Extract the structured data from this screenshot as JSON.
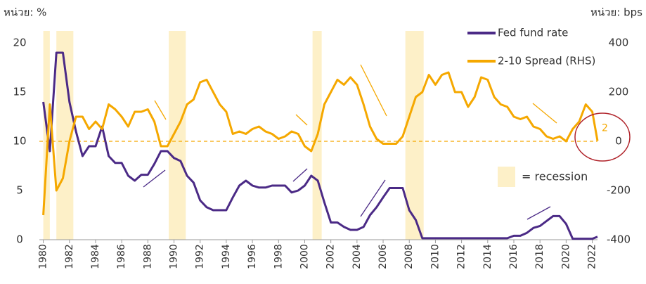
{
  "chart_data": {
    "type": "line",
    "y_unit_label": "หน่วย: %",
    "y2_unit_label": "หน่วย: bps",
    "x": [
      1980.0,
      1980.5,
      1981.0,
      1981.5,
      1982.0,
      1982.5,
      1983.0,
      1983.5,
      1984.0,
      1984.5,
      1985.0,
      1985.5,
      1986.0,
      1986.5,
      1987.0,
      1987.5,
      1988.0,
      1988.5,
      1989.0,
      1989.5,
      1990.0,
      1990.5,
      1991.0,
      1991.5,
      1992.0,
      1992.5,
      1993.0,
      1993.5,
      1994.0,
      1994.5,
      1995.0,
      1995.5,
      1996.0,
      1996.5,
      1997.0,
      1997.5,
      1998.0,
      1998.5,
      1999.0,
      1999.5,
      2000.0,
      2000.5,
      2001.0,
      2001.5,
      2002.0,
      2002.5,
      2003.0,
      2003.5,
      2004.0,
      2004.5,
      2005.0,
      2005.5,
      2006.0,
      2006.5,
      2007.0,
      2007.5,
      2008.0,
      2008.5,
      2009.0,
      2009.5,
      2010.0,
      2010.5,
      2011.0,
      2011.5,
      2012.0,
      2012.5,
      2013.0,
      2013.5,
      2014.0,
      2014.5,
      2015.0,
      2015.5,
      2016.0,
      2016.5,
      2017.0,
      2017.5,
      2018.0,
      2018.5,
      2019.0,
      2019.5,
      2020.0,
      2020.5,
      2021.0,
      2021.5,
      2022.0,
      2022.4
    ],
    "series": [
      {
        "name": "Fed fund rate",
        "color": "#4b2a86",
        "values": [
          14,
          9,
          19,
          19,
          14,
          11,
          8.5,
          9.5,
          9.5,
          11.5,
          8.5,
          7.8,
          7.8,
          6.5,
          6,
          6.6,
          6.6,
          7.7,
          9,
          9,
          8.3,
          8,
          6.5,
          5.8,
          4,
          3.3,
          3,
          3,
          3,
          4.3,
          5.5,
          6,
          5.5,
          5.3,
          5.3,
          5.5,
          5.5,
          5.5,
          4.8,
          5,
          5.5,
          6.5,
          6,
          3.8,
          1.75,
          1.75,
          1.3,
          1,
          1,
          1.3,
          2.5,
          3.3,
          4.3,
          5.25,
          5.25,
          5.25,
          3,
          2,
          0.15,
          0.15,
          0.15,
          0.15,
          0.15,
          0.15,
          0.15,
          0.15,
          0.15,
          0.15,
          0.15,
          0.15,
          0.15,
          0.15,
          0.4,
          0.4,
          0.7,
          1.2,
          1.4,
          1.9,
          2.4,
          2.4,
          1.6,
          0.1,
          0.1,
          0.1,
          0.1,
          0.3
        ]
      },
      {
        "name": "2-10 Spread (RHS)",
        "color": "#f5a800",
        "axis": "y2",
        "values": [
          -300,
          150,
          -200,
          -150,
          0,
          100,
          100,
          50,
          80,
          50,
          150,
          130,
          100,
          60,
          120,
          120,
          130,
          80,
          -20,
          -20,
          30,
          80,
          150,
          170,
          240,
          250,
          200,
          150,
          120,
          30,
          40,
          30,
          50,
          60,
          40,
          30,
          10,
          20,
          40,
          30,
          -20,
          -40,
          30,
          150,
          200,
          250,
          230,
          260,
          230,
          150,
          60,
          10,
          -10,
          -10,
          -10,
          20,
          100,
          180,
          200,
          270,
          230,
          270,
          280,
          200,
          200,
          140,
          180,
          260,
          250,
          180,
          150,
          140,
          100,
          90,
          100,
          60,
          50,
          20,
          10,
          20,
          0,
          50,
          80,
          150,
          120,
          2
        ]
      }
    ],
    "last_spread_label": "2",
    "recessions": [
      [
        1980.0,
        1980.5
      ],
      [
        1981.0,
        1982.3
      ],
      [
        1989.6,
        1990.9
      ],
      [
        2000.6,
        2001.3
      ],
      [
        2007.7,
        2009.1
      ]
    ],
    "recession_legend": "= recession",
    "xlim": [
      1979.7,
      2022.4
    ],
    "xticks": [
      1980,
      1982,
      1984,
      1986,
      1988,
      1990,
      1992,
      1994,
      1996,
      1998,
      2000,
      2002,
      2004,
      2006,
      2008,
      2010,
      2012,
      2014,
      2016,
      2018,
      2020,
      2022
    ],
    "ylim": [
      0,
      20
    ],
    "yticks": [
      0,
      5,
      10,
      15,
      20
    ],
    "y2lim": [
      -400,
      400
    ],
    "y2ticks": [
      -400,
      -200,
      0,
      200,
      400
    ]
  }
}
